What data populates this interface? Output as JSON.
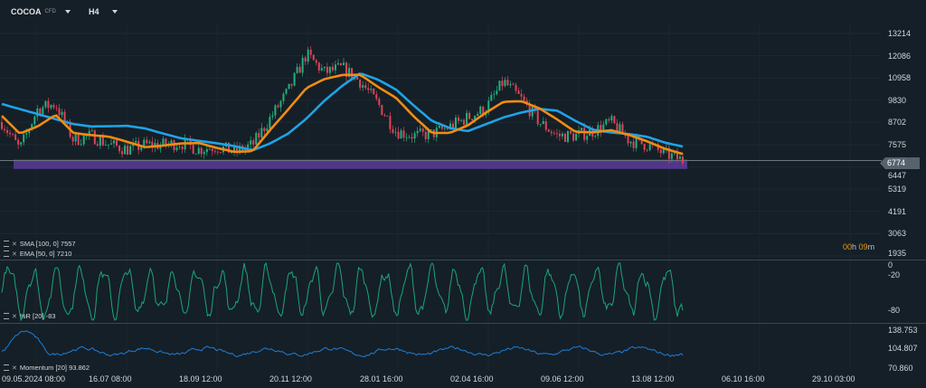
{
  "header": {
    "symbol": "COCOA",
    "symbol_type": "CFD",
    "timeframe": "H4"
  },
  "colors": {
    "background": "#151f27",
    "up": "#22b07d",
    "down": "#e0435a",
    "sma": "#1fa3e6",
    "ema": "#f08c12",
    "williams_r": "#1aa57a",
    "momentum": "#1e7ed8",
    "zone": "#5b3c9c"
  },
  "legend": {
    "sma": "SMA [100, 0] 7557",
    "ema": "EMA [50, 0] 7210",
    "wr": "%R [20] -83",
    "momentum": "Momentum [20] 93.862"
  },
  "price_axis": [
    "13214",
    "12086",
    "10958",
    "9830",
    "8702",
    "7575",
    "6447",
    "5319",
    "4191",
    "3063",
    "1935"
  ],
  "current_price": "6774",
  "timer": {
    "hours": "00",
    "h": "h",
    "minutes": "09",
    "m": "m"
  },
  "wr_axis": [
    "0",
    "-20",
    "-80"
  ],
  "momentum_axis": [
    "138.753",
    "104.807",
    "70.860"
  ],
  "time_axis": [
    "09.05.2024  08:00",
    "16.07  08:00",
    "18.09  12:00",
    "20.11  12:00",
    "28.01  16:00",
    "02.04  16:00",
    "09.06  12:00",
    "13.08  12:00",
    "06.10  16:00",
    "29.10  03:00"
  ],
  "chart_data": {
    "type": "candlestick",
    "ylim": [
      1935,
      13214
    ],
    "price_path": [
      8720,
      7340,
      9400,
      9640,
      7800,
      8030,
      7570,
      7340,
      7570,
      7570,
      7660,
      7340,
      7480,
      7210,
      7570,
      8950,
      10320,
      12160,
      11240,
      11470,
      10780,
      9640,
      8260,
      8030,
      8120,
      8490,
      8950,
      9400,
      10780,
      9870,
      8720,
      8030,
      8030,
      8260,
      8720,
      7800,
      7570,
      7110,
      6790
    ],
    "sma_100": [
      9640,
      9380,
      9130,
      8870,
      8620,
      8500,
      8510,
      8530,
      8400,
      8140,
      7900,
      7770,
      7650,
      7500,
      7290,
      7650,
      8150,
      8900,
      9800,
      10560,
      11200,
      10870,
      10370,
      9550,
      8780,
      8420,
      8260,
      8610,
      8960,
      9210,
      9390,
      9300,
      8790,
      8330,
      8200,
      8110,
      7980,
      7680,
      7480
    ],
    "ema_50": [
      9040,
      8140,
      8500,
      9090,
      8170,
      8060,
      7980,
      7720,
      7450,
      7530,
      7640,
      7660,
      7410,
      7210,
      7250,
      8350,
      9380,
      10450,
      10900,
      11110,
      11120,
      10500,
      9950,
      9000,
      8170,
      8170,
      8550,
      9190,
      9750,
      9780,
      9420,
      8850,
      8230,
      8200,
      8310,
      8070,
      7750,
      7370,
      7110
    ],
    "support_zone": [
      6300,
      6774
    ],
    "wr_range": [
      -100,
      0
    ],
    "momentum_range": [
      60,
      145
    ]
  }
}
